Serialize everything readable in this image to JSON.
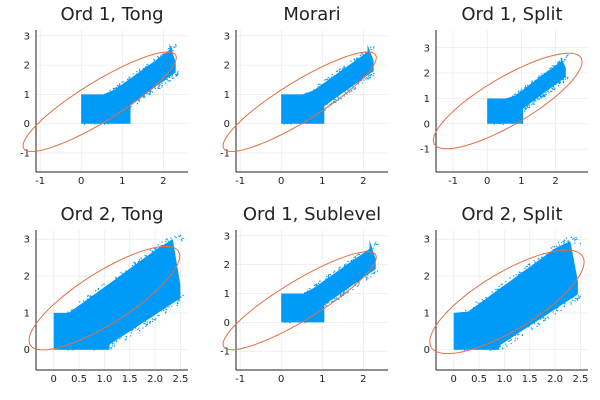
{
  "chart_data": [
    {
      "type": "scatter",
      "title": "Ord 1, Tong",
      "xlim": [
        -1.1,
        2.6
      ],
      "ylim": [
        -1.65,
        3.2
      ],
      "xticks": [
        -1,
        0,
        1,
        2
      ],
      "yticks": [
        -1,
        0,
        1,
        2,
        3
      ],
      "grid": true,
      "legend": "none",
      "series": [
        {
          "kind": "point cloud",
          "color": "#009af9",
          "region": {
            "x_min": 0,
            "y_min": 0,
            "corner_box": [
              1.2,
              1.0
            ],
            "upper_band_slope": 1.0,
            "upper_band_intercept": 0.35,
            "lower_band_slope": 1.0,
            "lower_band_intercept": -0.55,
            "x_max": 2.3,
            "y_max": 2.75
          }
        },
        {
          "kind": "ellipse",
          "color": "#e26f46",
          "center": [
            0.45,
            0.75
          ],
          "semi_major": 2.45,
          "semi_minor": 0.6,
          "angle_deg": 42
        }
      ]
    },
    {
      "type": "scatter",
      "title": "Morari",
      "xlim": [
        -1.1,
        2.6
      ],
      "ylim": [
        -1.65,
        3.2
      ],
      "xticks": [
        -1,
        0,
        1,
        2
      ],
      "yticks": [
        -1,
        0,
        1,
        2,
        3
      ],
      "grid": true,
      "legend": "none",
      "series": [
        {
          "kind": "point cloud",
          "color": "#009af9",
          "region": {
            "x_min": 0,
            "y_min": 0,
            "corner_box": [
              1.05,
              1.0
            ],
            "upper_band_slope": 1.0,
            "upper_band_intercept": 0.35,
            "lower_band_slope": 1.0,
            "lower_band_intercept": -0.45,
            "x_max": 2.25,
            "y_max": 2.7
          }
        },
        {
          "kind": "ellipse",
          "color": "#e26f46",
          "center": [
            0.45,
            0.75
          ],
          "semi_major": 2.45,
          "semi_minor": 0.6,
          "angle_deg": 42
        }
      ]
    },
    {
      "type": "scatter",
      "title": "Ord 1, Split",
      "xlim": [
        -1.5,
        2.95
      ],
      "ylim": [
        -1.9,
        3.7
      ],
      "xticks": [
        -1,
        0,
        1,
        2
      ],
      "yticks": [
        -1,
        0,
        1,
        2,
        3
      ],
      "grid": true,
      "legend": "none",
      "series": [
        {
          "kind": "point cloud",
          "color": "#009af9",
          "region": {
            "x_min": 0,
            "y_min": 0,
            "corner_box": [
              1.05,
              1.0
            ],
            "upper_band_slope": 1.0,
            "upper_band_intercept": 0.3,
            "lower_band_slope": 1.0,
            "lower_band_intercept": -0.45,
            "x_max": 2.3,
            "y_max": 2.65
          }
        },
        {
          "kind": "ellipse",
          "color": "#e26f46",
          "center": [
            0.6,
            0.9
          ],
          "semi_major": 2.75,
          "semi_minor": 0.85,
          "angle_deg": 40
        }
      ]
    },
    {
      "type": "scatter",
      "title": "Ord 2, Tong",
      "xlim": [
        -0.35,
        2.65
      ],
      "ylim": [
        -0.55,
        3.25
      ],
      "xticks": [
        0,
        0.5,
        1,
        1.5,
        2,
        2.5
      ],
      "ytickvals": [
        0,
        1,
        2,
        3
      ],
      "xticklabels": [
        "0",
        "0.5",
        "1.0",
        "1.5",
        "2.0",
        "2.5"
      ],
      "yticklabels": [
        "0",
        "1",
        "2",
        "3"
      ],
      "grid": true,
      "legend": "none",
      "series": [
        {
          "kind": "point cloud",
          "color": "#009af9",
          "region": {
            "x_min": 0,
            "y_min": 0,
            "corner_box": [
              1.1,
              1.0
            ],
            "upper_band_slope": 1.0,
            "upper_band_intercept": 0.7,
            "lower_band_slope": 0.9,
            "lower_band_intercept": -0.85,
            "x_max": 2.5,
            "y_max": 3.0
          }
        },
        {
          "kind": "ellipse",
          "color": "#e26f46",
          "center": [
            1.0,
            1.4
          ],
          "semi_major": 1.95,
          "semi_minor": 0.62,
          "angle_deg": 43
        }
      ]
    },
    {
      "type": "scatter",
      "title": "Ord 1, Sublevel",
      "xlim": [
        -1.1,
        2.6
      ],
      "ylim": [
        -1.65,
        3.2
      ],
      "xticks": [
        -1,
        0,
        1,
        2
      ],
      "yticks": [
        -1,
        0,
        1,
        2,
        3
      ],
      "grid": true,
      "legend": "none",
      "series": [
        {
          "kind": "point cloud",
          "color": "#009af9",
          "region": {
            "x_min": 0,
            "y_min": 0,
            "corner_box": [
              1.05,
              1.0
            ],
            "upper_band_slope": 1.0,
            "upper_band_intercept": 0.4,
            "lower_band_slope": 1.0,
            "lower_band_intercept": -0.45,
            "x_max": 2.3,
            "y_max": 2.85
          }
        },
        {
          "kind": "ellipse",
          "color": "#e26f46",
          "center": [
            0.45,
            0.75
          ],
          "semi_major": 2.45,
          "semi_minor": 0.6,
          "angle_deg": 42
        }
      ]
    },
    {
      "type": "scatter",
      "title": "Ord 2, Split",
      "xlim": [
        -0.35,
        2.65
      ],
      "ylim": [
        -0.55,
        3.25
      ],
      "xticks": [
        0,
        0.5,
        1,
        1.5,
        2,
        2.5
      ],
      "ytickvals": [
        0,
        1,
        2,
        3
      ],
      "xticklabels": [
        "0",
        "0.5",
        "1.0",
        "1.5",
        "2.0",
        "2.5"
      ],
      "yticklabels": [
        "0",
        "1",
        "2",
        "3"
      ],
      "grid": true,
      "legend": "none",
      "series": [
        {
          "kind": "point cloud",
          "color": "#009af9",
          "region": {
            "x_min": 0,
            "y_min": 0,
            "corner_box": [
              0.9,
              1.0
            ],
            "upper_band_slope": 1.0,
            "upper_band_intercept": 0.75,
            "lower_band_slope": 0.9,
            "lower_band_intercept": -0.7,
            "x_max": 2.45,
            "y_max": 2.95
          }
        },
        {
          "kind": "ellipse",
          "color": "#e26f46",
          "center": [
            1.05,
            1.3
          ],
          "semi_major": 1.95,
          "semi_minor": 0.7,
          "angle_deg": 42
        }
      ]
    }
  ]
}
